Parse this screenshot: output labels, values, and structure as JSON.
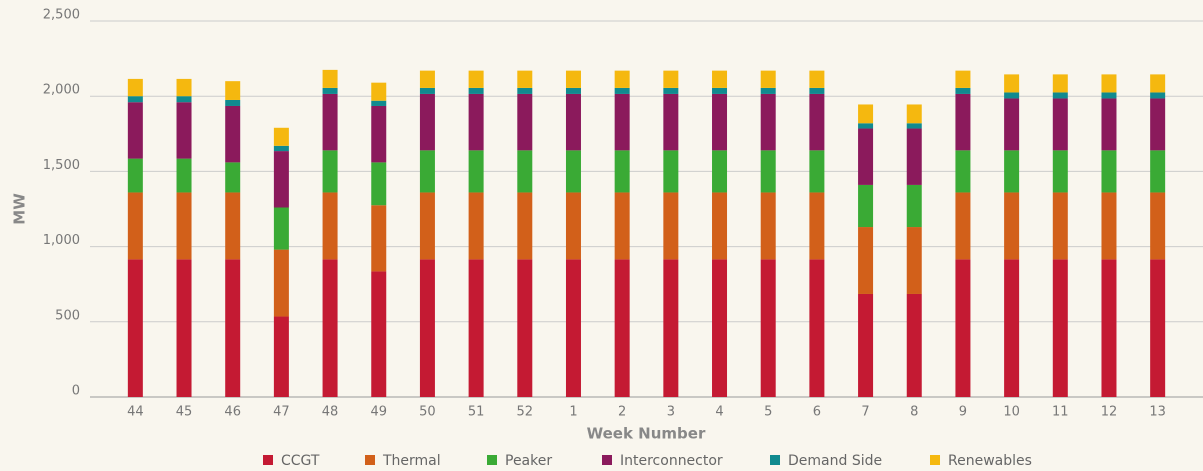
{
  "chart_data": {
    "type": "bar",
    "stacked": true,
    "x_label": "Week Number",
    "y_label": "MW",
    "categories": [
      "44",
      "45",
      "46",
      "47",
      "48",
      "49",
      "50",
      "51",
      "52",
      "1",
      "2",
      "3",
      "4",
      "5",
      "6",
      "7",
      "8",
      "9",
      "10",
      "11",
      "12",
      "13"
    ],
    "series": [
      {
        "name": "CCGT",
        "color": "#c41a33",
        "values": [
          915,
          915,
          915,
          535,
          915,
          835,
          915,
          915,
          915,
          915,
          915,
          915,
          915,
          915,
          915,
          685,
          685,
          915,
          915,
          915,
          915,
          915
        ]
      },
      {
        "name": "Thermal",
        "color": "#d2601a",
        "values": [
          445,
          445,
          445,
          445,
          445,
          440,
          445,
          445,
          445,
          445,
          445,
          445,
          445,
          445,
          445,
          445,
          445,
          445,
          445,
          445,
          445,
          445
        ]
      },
      {
        "name": "Peaker",
        "color": "#3aaa35",
        "values": [
          225,
          225,
          200,
          280,
          280,
          285,
          280,
          280,
          280,
          280,
          280,
          280,
          280,
          280,
          280,
          280,
          280,
          280,
          280,
          280,
          280,
          280
        ]
      },
      {
        "name": "Interconnector",
        "color": "#8b1a5c",
        "values": [
          375,
          375,
          375,
          375,
          375,
          375,
          375,
          375,
          375,
          375,
          375,
          375,
          375,
          375,
          375,
          375,
          375,
          375,
          345,
          345,
          345,
          345
        ]
      },
      {
        "name": "Demand Side",
        "color": "#118a8f",
        "values": [
          40,
          40,
          40,
          35,
          40,
          35,
          40,
          40,
          40,
          40,
          40,
          40,
          40,
          40,
          40,
          35,
          35,
          40,
          40,
          40,
          40,
          40
        ]
      },
      {
        "name": "Renewables",
        "color": "#f5b80f",
        "values": [
          115,
          115,
          125,
          120,
          120,
          120,
          115,
          115,
          115,
          115,
          115,
          115,
          115,
          115,
          115,
          125,
          125,
          115,
          120,
          120,
          120,
          120
        ]
      }
    ],
    "ylim": [
      0,
      2500
    ],
    "yticks": [
      0,
      500,
      {
        "value": 1000,
        "label": "1,000"
      },
      {
        "value": 1500,
        "label": "1,500"
      },
      {
        "value": 2000,
        "label": "2,000"
      },
      {
        "value": 2500,
        "label": "2,500"
      }
    ],
    "grid": true,
    "legend": "bottom"
  }
}
